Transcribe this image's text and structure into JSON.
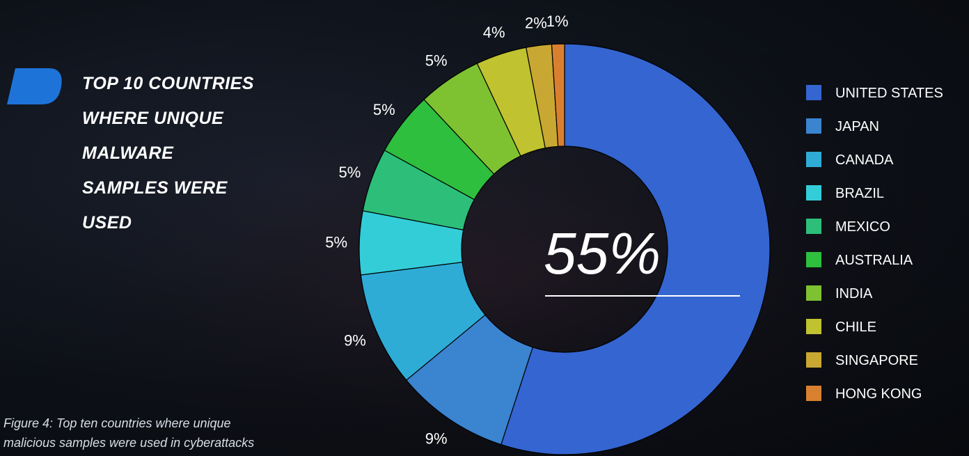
{
  "chart_data": {
    "type": "donut",
    "title_lines": [
      "TOP 10 COUNTRIES",
      "WHERE UNIQUE",
      "MALWARE",
      "SAMPLES WERE",
      "USED"
    ],
    "caption_lines": [
      "Figure 4: Top ten countries where unique",
      "malicious samples were used in cyberattacks"
    ],
    "categories": [
      "UNITED STATES",
      "JAPAN",
      "CANADA",
      "BRAZIL",
      "MEXICO",
      "AUSTRALIA",
      "INDIA",
      "CHILE",
      "SINGAPORE",
      "HONG KONG"
    ],
    "values": [
      55,
      9,
      9,
      5,
      5,
      5,
      5,
      4,
      2,
      1
    ],
    "value_labels": [
      "55%",
      "9%",
      "9%",
      "5%",
      "5%",
      "5%",
      "5%",
      "4%",
      "2%",
      "1%"
    ],
    "colors": [
      "#3465d0",
      "#3a84d0",
      "#2eacd6",
      "#33cdd8",
      "#2dbf7a",
      "#2ebf3e",
      "#7ec232",
      "#c0c230",
      "#c8a832",
      "#d98030"
    ],
    "legend": "right"
  }
}
